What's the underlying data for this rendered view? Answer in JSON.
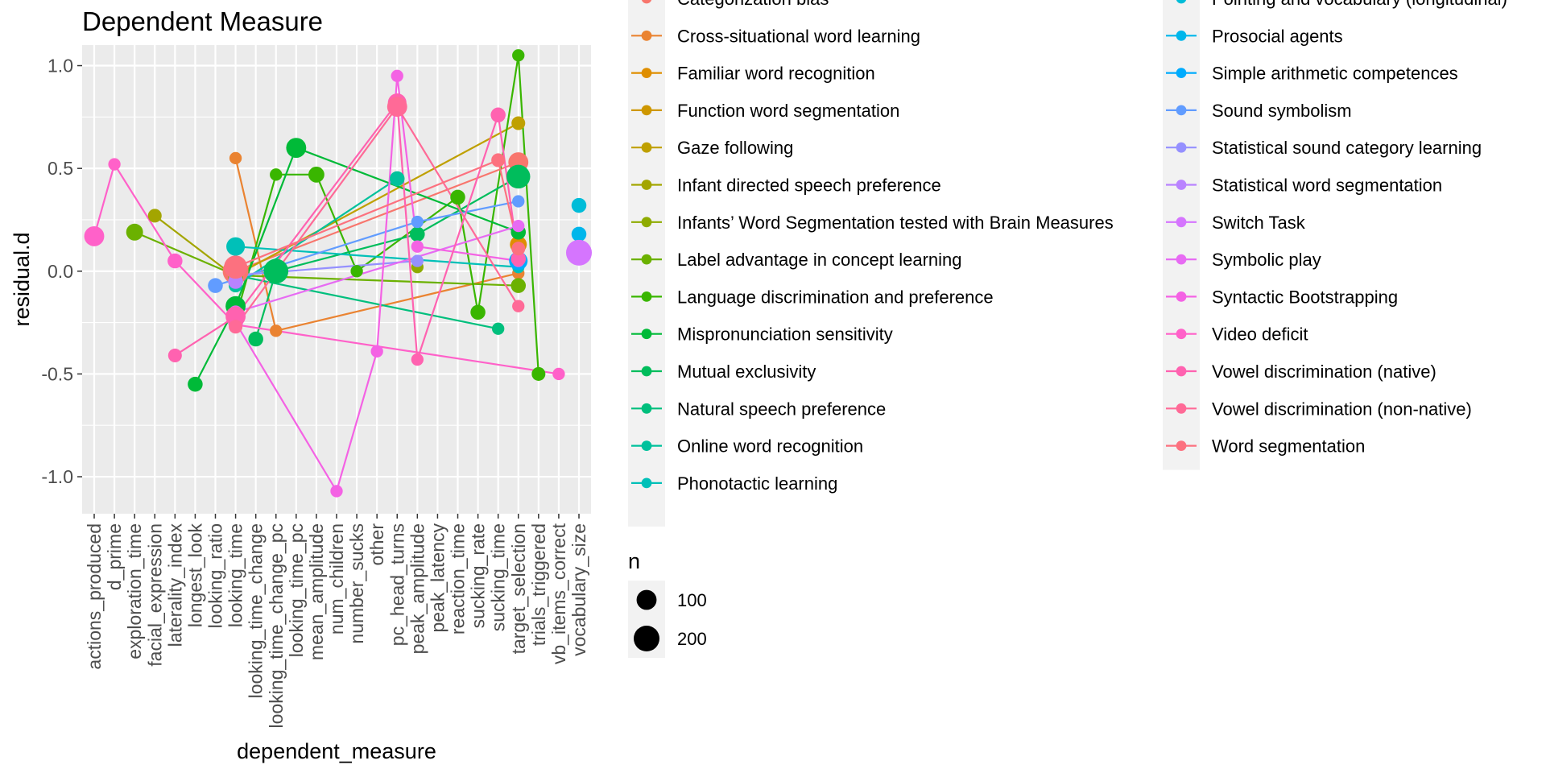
{
  "chart_data": {
    "type": "scatter",
    "title": "Dependent Measure",
    "xlabel": "dependent_measure",
    "ylabel": "residual.d",
    "ylim": [
      -1.18,
      1.1
    ],
    "yticks": [
      -1.0,
      -0.5,
      0.0,
      0.5,
      1.0
    ],
    "ytick_labels": [
      "-1.0",
      "-0.5",
      "0.0",
      "0.5",
      "1.0"
    ],
    "categories": [
      "actions_produced",
      "d_prime",
      "exploration_time",
      "facial_expression",
      "laterality_index",
      "longest_look",
      "looking_ratio",
      "looking_time",
      "looking_time_change",
      "looking_time_change_pc",
      "looking_time_pc",
      "mean_amplitude",
      "num_children",
      "number_sucks",
      "other",
      "pc_head_turns",
      "peak_amplitude",
      "peak_latency",
      "reaction_time",
      "sucking_rate",
      "sucking_time",
      "target_selection",
      "trials_triggered",
      "vb_items_correct",
      "vocabulary_size"
    ],
    "grid": true,
    "legend_position": "right",
    "size_legend": {
      "title": "n",
      "labels": [
        "100",
        "200"
      ]
    },
    "series": [
      {
        "name": "Categorization bias",
        "color": "#F8766D",
        "points": [
          [
            "looking_time",
            0.0,
            200
          ],
          [
            "target_selection",
            0.53,
            100
          ]
        ]
      },
      {
        "name": "Cross-situational word learning",
        "color": "#EA8331",
        "points": [
          [
            "looking_time",
            0.55,
            20
          ],
          [
            "looking_time_change_pc",
            -0.29,
            20
          ],
          [
            "target_selection",
            -0.01,
            20
          ]
        ]
      },
      {
        "name": "Familiar word recognition",
        "color": "#DF8E00",
        "points": [
          [
            "target_selection",
            0.13,
            60
          ]
        ]
      },
      {
        "name": "Function word segmentation",
        "color": "#CE9700",
        "points": [
          [
            "looking_time",
            -0.05,
            40
          ]
        ]
      },
      {
        "name": "Gaze following",
        "color": "#BFA000",
        "points": [
          [
            "looking_time",
            -0.02,
            30
          ],
          [
            "target_selection",
            0.72,
            30
          ]
        ]
      },
      {
        "name": "Infant directed speech preference",
        "color": "#A3A500",
        "points": [
          [
            "facial_expression",
            0.27,
            30
          ],
          [
            "looking_time",
            -0.03,
            40
          ]
        ]
      },
      {
        "name": "Infants’ Word Segmentation tested with Brain Measures",
        "color": "#8EAB00",
        "points": [
          [
            "peak_amplitude",
            0.02,
            20
          ]
        ]
      },
      {
        "name": "Label advantage in concept learning",
        "color": "#6BB100",
        "points": [
          [
            "exploration_time",
            0.19,
            60
          ],
          [
            "looking_time",
            -0.02,
            30
          ],
          [
            "target_selection",
            -0.07,
            40
          ]
        ]
      },
      {
        "name": "Language discrimination and preference",
        "color": "#39B600",
        "points": [
          [
            "looking_time",
            -0.23,
            30
          ],
          [
            "looking_time_change_pc",
            0.47,
            20
          ],
          [
            "mean_amplitude",
            0.47,
            50
          ],
          [
            "number_sucks",
            0.0,
            20
          ],
          [
            "reaction_time",
            0.36,
            40
          ],
          [
            "sucking_rate",
            -0.2,
            40
          ],
          [
            "target_selection",
            1.05,
            20
          ],
          [
            "trials_triggered",
            -0.5,
            30
          ]
        ]
      },
      {
        "name": "Mispronunciation sensitivity",
        "color": "#00BA38",
        "points": [
          [
            "longest_look",
            -0.55,
            40
          ],
          [
            "looking_time",
            -0.17,
            100
          ],
          [
            "looking_time_pc",
            0.6,
            100
          ],
          [
            "target_selection",
            0.19,
            40
          ]
        ]
      },
      {
        "name": "Mutual exclusivity",
        "color": "#00BD5C",
        "points": [
          [
            "looking_time_change",
            -0.33,
            40
          ],
          [
            "looking_time_change_pc",
            0.0,
            180
          ],
          [
            "peak_amplitude",
            0.18,
            40
          ],
          [
            "target_selection",
            0.46,
            160
          ]
        ]
      },
      {
        "name": "Natural speech preference",
        "color": "#00BF7D",
        "points": [
          [
            "looking_time",
            -0.02,
            30
          ],
          [
            "sucking_time",
            -0.28,
            20
          ]
        ]
      },
      {
        "name": "Online word recognition",
        "color": "#00C19C",
        "points": [
          [
            "looking_time",
            -0.07,
            30
          ],
          [
            "pc_head_turns",
            0.45,
            40
          ]
        ]
      },
      {
        "name": "Phonotactic learning",
        "color": "#00C0B8",
        "points": [
          [
            "looking_time",
            0.12,
            80
          ],
          [
            "target_selection",
            0.02,
            20
          ]
        ]
      },
      {
        "name": "Pointing and vocabulary (longitudinal)",
        "color": "#00BCD8",
        "points": [
          [
            "vocabulary_size",
            0.32,
            40
          ]
        ]
      },
      {
        "name": "Prosocial agents",
        "color": "#00B6EB",
        "points": [
          [
            "vocabulary_size",
            0.18,
            40
          ]
        ]
      },
      {
        "name": "Simple arithmetic competences",
        "color": "#00ABFD",
        "points": [
          [
            "target_selection",
            0.05,
            80
          ]
        ]
      },
      {
        "name": "Sound symbolism",
        "color": "#619CFF",
        "points": [
          [
            "looking_ratio",
            -0.07,
            40
          ],
          [
            "peak_amplitude",
            0.24,
            20
          ],
          [
            "target_selection",
            0.34,
            20
          ]
        ]
      },
      {
        "name": "Statistical sound category learning",
        "color": "#9590FF",
        "points": [
          [
            "looking_time",
            -0.02,
            30
          ],
          [
            "peak_amplitude",
            0.05,
            20
          ]
        ]
      },
      {
        "name": "Statistical word segmentation",
        "color": "#B983FF",
        "points": [
          [
            "looking_time",
            -0.05,
            40
          ]
        ]
      },
      {
        "name": "Switch Task",
        "color": "#D575FE",
        "points": [
          [
            "vocabulary_size",
            0.09,
            200
          ]
        ]
      },
      {
        "name": "Symbolic play",
        "color": "#E76BF3",
        "points": [
          [
            "looking_time",
            -0.2,
            30
          ],
          [
            "target_selection",
            0.22,
            20
          ]
        ]
      },
      {
        "name": "Syntactic Bootstrapping",
        "color": "#F462E4",
        "points": [
          [
            "looking_time",
            -0.25,
            40
          ],
          [
            "num_children",
            -1.07,
            20
          ],
          [
            "other",
            -0.39,
            20
          ],
          [
            "pc_head_turns",
            0.95,
            20
          ],
          [
            "peak_amplitude",
            0.12,
            20
          ],
          [
            "target_selection",
            0.05,
            20
          ]
        ]
      },
      {
        "name": "Video deficit",
        "color": "#FF61C9",
        "points": [
          [
            "actions_produced",
            0.17,
            100
          ],
          [
            "d_prime",
            0.52,
            20
          ],
          [
            "laterality_index",
            0.05,
            40
          ],
          [
            "looking_time",
            -0.26,
            30
          ],
          [
            "vb_items_correct",
            -0.5,
            20
          ]
        ]
      },
      {
        "name": "Vowel discrimination (native)",
        "color": "#FF62B0",
        "points": [
          [
            "laterality_index",
            -0.41,
            30
          ],
          [
            "looking_time",
            -0.22,
            100
          ],
          [
            "pc_head_turns",
            0.82,
            80
          ],
          [
            "peak_amplitude",
            -0.43,
            20
          ],
          [
            "sucking_time",
            0.76,
            40
          ],
          [
            "target_selection",
            0.06,
            40
          ]
        ]
      },
      {
        "name": "Vowel discrimination (non-native)",
        "color": "#FF6A97",
        "points": [
          [
            "looking_time",
            -0.27,
            30
          ],
          [
            "pc_head_turns",
            0.8,
            100
          ],
          [
            "target_selection",
            -0.17,
            20
          ]
        ]
      },
      {
        "name": "Word segmentation",
        "color": "#FC717F",
        "points": [
          [
            "looking_time",
            0.02,
            150
          ],
          [
            "sucking_time",
            0.54,
            30
          ],
          [
            "target_selection",
            0.11,
            30
          ]
        ]
      }
    ]
  }
}
